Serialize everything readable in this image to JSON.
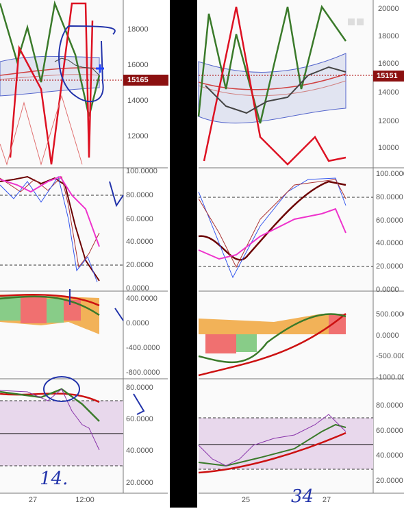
{
  "left": {
    "price_axis": [
      "18000",
      "16000",
      "14000",
      "12000"
    ],
    "price_tag": "15165",
    "stoch_axis": [
      "100.0000",
      "80.0000",
      "60.0000",
      "40.0000",
      "20.0000",
      "0.0000"
    ],
    "macd_axis": [
      "400.0000",
      "0.0000",
      "-400.0000",
      "-800.0000"
    ],
    "rsi_axis": [
      "80.0000",
      "60.0000",
      "40.0000",
      "20.0000"
    ],
    "time_axis": [
      "27",
      "12:00"
    ],
    "note": "14."
  },
  "right": {
    "price_axis": [
      "20000",
      "18000",
      "16000",
      "14000",
      "12000",
      "10000"
    ],
    "price_tag": "15151",
    "stoch_axis": [
      "100.0000",
      "80.0000",
      "60.0000",
      "40.0000",
      "20.0000",
      "0.0000"
    ],
    "macd_axis": [
      "500.0000",
      "0.0000",
      "-500.0000",
      "-1000.0000"
    ],
    "rsi_axis": [
      "80.0000",
      "60.0000",
      "40.0000",
      "20.0000"
    ],
    "time_axis": [
      "25",
      "27"
    ],
    "note": "34"
  }
}
